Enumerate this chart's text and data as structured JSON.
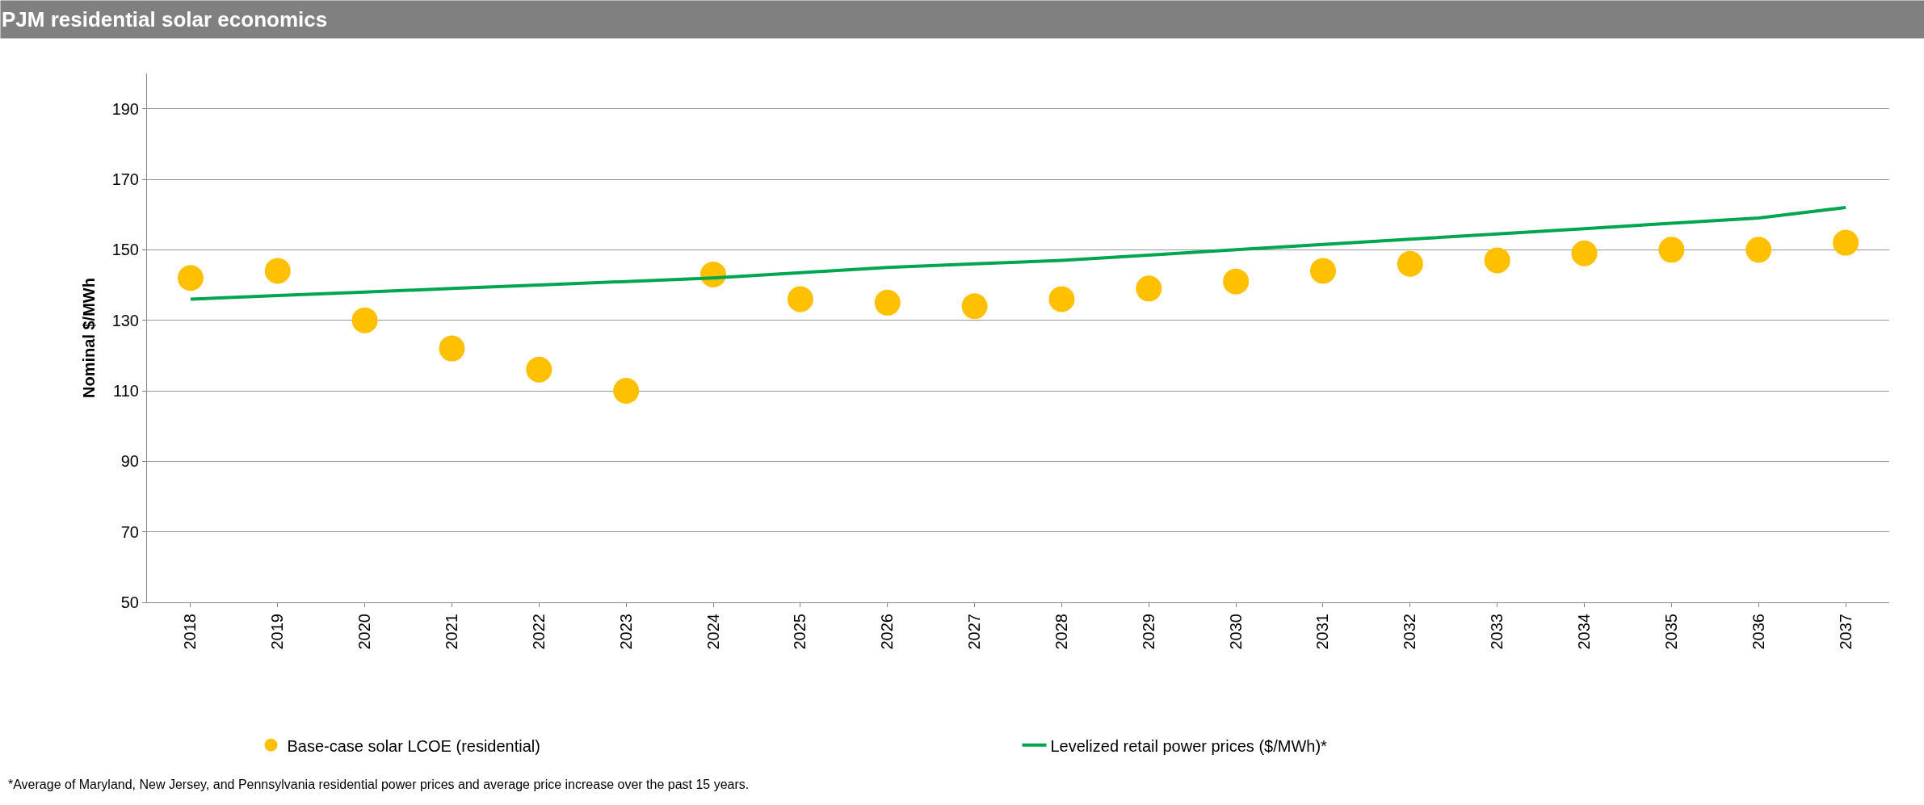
{
  "chart_data": {
    "type": "scatter",
    "title": "PJM residential solar economics",
    "ylabel": "Nominal $/MWh",
    "categories": [
      "2018",
      "2019",
      "2020",
      "2021",
      "2022",
      "2023",
      "2024",
      "2025",
      "2026",
      "2027",
      "2028",
      "2029",
      "2030",
      "2031",
      "2032",
      "2033",
      "2034",
      "2035",
      "2036",
      "2037"
    ],
    "series": [
      {
        "name": "Base-case solar LCOE (residential)",
        "color": "#ffc000",
        "marker": "circle",
        "values": [
          142,
          144,
          130,
          122,
          116,
          110,
          143,
          136,
          135,
          134,
          136,
          139,
          141,
          144,
          146,
          147,
          149,
          150,
          150,
          152
        ]
      },
      {
        "name": "Levelized retail power prices ($/MWh)*",
        "type": "line",
        "color": "#00a64f",
        "marker": "none",
        "line_style": "solid",
        "values": [
          136,
          137,
          138,
          139,
          140,
          141,
          142,
          143.5,
          145,
          146,
          147,
          148.5,
          150,
          151.5,
          153,
          154.5,
          156,
          157.5,
          159,
          162
        ]
      }
    ],
    "ylim": [
      50,
      200
    ],
    "yticks": [
      50,
      70,
      90,
      110,
      130,
      150,
      170,
      190
    ],
    "grid": "y",
    "legend": "bottom",
    "annotations": [
      "*Average of Maryland, New Jersey, and Pennsylvania residential power prices and average price increase over the past 15 years."
    ]
  }
}
